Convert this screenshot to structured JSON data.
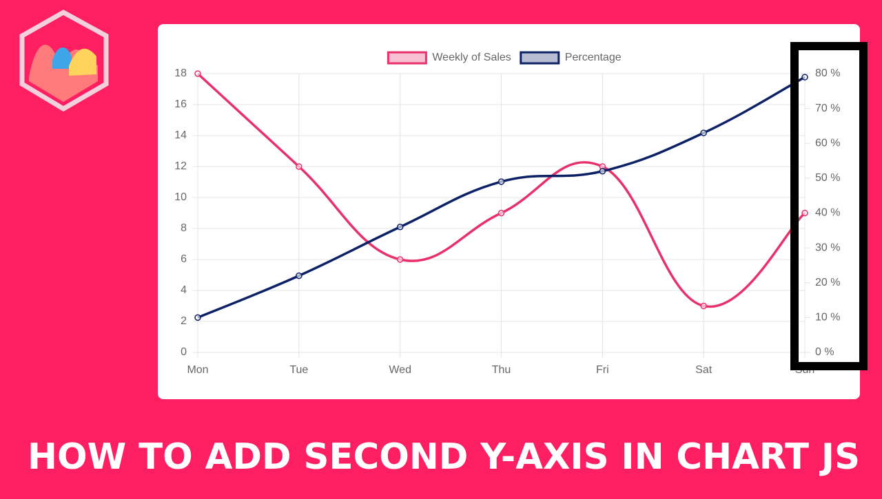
{
  "chart_data": {
    "type": "line",
    "banner": "HOW TO ADD SECOND Y-AXIS IN CHART JS",
    "categories": [
      "Mon",
      "Tue",
      "Wed",
      "Thu",
      "Fri",
      "Sat",
      "Sun"
    ],
    "series": [
      {
        "name": "Weekly of Sales",
        "color": "#e8306b",
        "axis": "y",
        "values": [
          18,
          12,
          6,
          9,
          12,
          3,
          9
        ]
      },
      {
        "name": "Percentage",
        "color": "#0d2166",
        "axis": "y2",
        "values": [
          10,
          22,
          36,
          49,
          52,
          63,
          79
        ]
      }
    ],
    "ylim": [
      0,
      18
    ],
    "yticks": [
      0,
      2,
      4,
      6,
      8,
      10,
      12,
      14,
      16,
      18
    ],
    "y2lim": [
      0,
      80
    ],
    "y2ticks": [
      {
        "value": 0,
        "label": "0 %"
      },
      {
        "value": 10,
        "label": "10 %"
      },
      {
        "value": 20,
        "label": "20 %"
      },
      {
        "value": 30,
        "label": "30 %"
      },
      {
        "value": 40,
        "label": "40 %"
      },
      {
        "value": 50,
        "label": "50 %"
      },
      {
        "value": 60,
        "label": "60 %"
      },
      {
        "value": 70,
        "label": "70 %"
      },
      {
        "value": 80,
        "label": "80 %"
      }
    ],
    "grid": true,
    "legend": "top"
  }
}
